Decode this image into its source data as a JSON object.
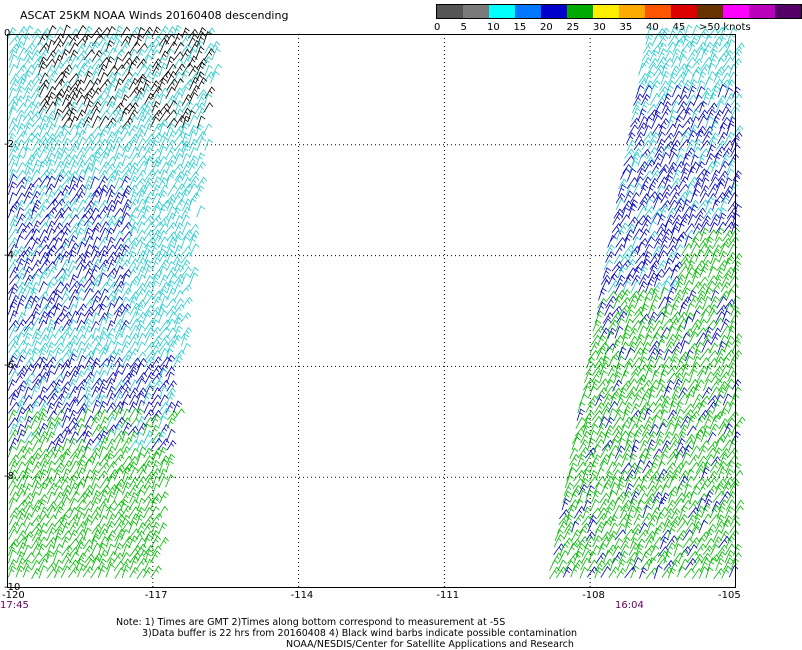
{
  "title": "ASCAT 25KM NOAA Winds 20160408 descending",
  "legend": {
    "swatches": [
      "#555555",
      "#7a7a7a",
      "#00ffff",
      "#0077ff",
      "#0000cc",
      "#00aa00",
      "#ffee00",
      "#ffaa00",
      "#ff5500",
      "#dd0000",
      "#663300",
      "#ff00ff",
      "#bb00bb",
      "#550066"
    ],
    "labels": [
      "0",
      "5",
      "10",
      "15",
      "20",
      "25",
      "30",
      "35",
      "40",
      "45",
      ">50 knots"
    ]
  },
  "axes": {
    "x_ticks": [
      "-120",
      "-117",
      "-114",
      "-111",
      "-108",
      "-105"
    ],
    "y_ticks": [
      "0",
      "-2",
      "-4",
      "-6",
      "-8",
      "-10"
    ],
    "xlim": [
      -120,
      -105
    ],
    "ylim": [
      -10,
      0
    ]
  },
  "times": {
    "left": "17:45",
    "right": "16:04"
  },
  "notes": {
    "line1": "Note: 1) Times are GMT 2)Times along bottom correspond to measurement at -5S",
    "line2": "3)Data buffer is 22 hrs from 20160408 4) Black wind barbs indicate possible contamination",
    "line3": "NOAA/NESDIS/Center for Satellite Applications and Research"
  },
  "colors": {
    "cyan": "#22cccc",
    "blue": "#0000bb",
    "green": "#00bb00",
    "black": "#000000",
    "grid": "#000000"
  }
}
